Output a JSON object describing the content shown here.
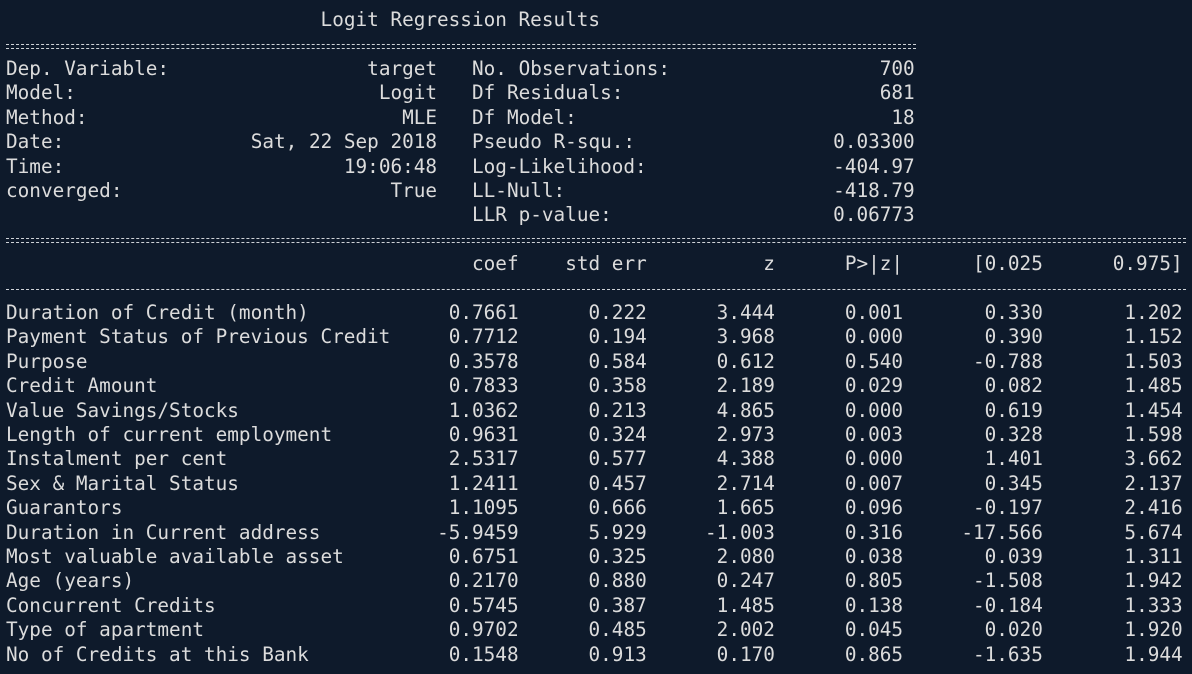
{
  "title": "Logit Regression Results",
  "info": {
    "left": [
      [
        "Dep. Variable:",
        "target"
      ],
      [
        "Model:",
        "Logit"
      ],
      [
        "Method:",
        "MLE"
      ],
      [
        "Date:",
        "Sat, 22 Sep 2018"
      ],
      [
        "Time:",
        "19:06:48"
      ],
      [
        "converged:",
        "True"
      ]
    ],
    "right": [
      [
        "No. Observations:",
        "700"
      ],
      [
        "Df Residuals:",
        "681"
      ],
      [
        "Df Model:",
        "18"
      ],
      [
        "Pseudo R-squ.:",
        "0.03300"
      ],
      [
        "Log-Likelihood:",
        "-404.97"
      ],
      [
        "LL-Null:",
        "-418.79"
      ],
      [
        "LLR p-value:",
        "0.06773"
      ]
    ]
  },
  "table": {
    "header": [
      "coef",
      "std err",
      "z",
      "P>|z|",
      "[0.025",
      "0.975]"
    ],
    "rows": [
      [
        "Duration of Credit (month)",
        "0.7661",
        "0.222",
        "3.444",
        "0.001",
        "0.330",
        "1.202"
      ],
      [
        "Payment Status of Previous Credit",
        "0.7712",
        "0.194",
        "3.968",
        "0.000",
        "0.390",
        "1.152"
      ],
      [
        "Purpose",
        "0.3578",
        "0.584",
        "0.612",
        "0.540",
        "-0.788",
        "1.503"
      ],
      [
        "Credit Amount",
        "0.7833",
        "0.358",
        "2.189",
        "0.029",
        "0.082",
        "1.485"
      ],
      [
        "Value Savings/Stocks",
        "1.0362",
        "0.213",
        "4.865",
        "0.000",
        "0.619",
        "1.454"
      ],
      [
        "Length of current employment",
        "0.9631",
        "0.324",
        "2.973",
        "0.003",
        "0.328",
        "1.598"
      ],
      [
        "Instalment per cent",
        "2.5317",
        "0.577",
        "4.388",
        "0.000",
        "1.401",
        "3.662"
      ],
      [
        "Sex & Marital Status",
        "1.2411",
        "0.457",
        "2.714",
        "0.007",
        "0.345",
        "2.137"
      ],
      [
        "Guarantors",
        "1.1095",
        "0.666",
        "1.665",
        "0.096",
        "-0.197",
        "2.416"
      ],
      [
        "Duration in Current address",
        "-5.9459",
        "5.929",
        "-1.003",
        "0.316",
        "-17.566",
        "5.674"
      ],
      [
        "Most valuable available asset",
        "0.6751",
        "0.325",
        "2.080",
        "0.038",
        "0.039",
        "1.311"
      ],
      [
        "Age (years)",
        "0.2170",
        "0.880",
        "0.247",
        "0.805",
        "-1.508",
        "1.942"
      ],
      [
        "Concurrent Credits",
        "0.5745",
        "0.387",
        "1.485",
        "0.138",
        "-0.184",
        "1.333"
      ],
      [
        "Type of apartment",
        "0.9702",
        "0.485",
        "2.002",
        "0.045",
        "0.020",
        "1.920"
      ],
      [
        "No of Credits at this Bank",
        "0.1548",
        "0.913",
        "0.170",
        "0.865",
        "-1.635",
        "1.944"
      ]
    ]
  }
}
